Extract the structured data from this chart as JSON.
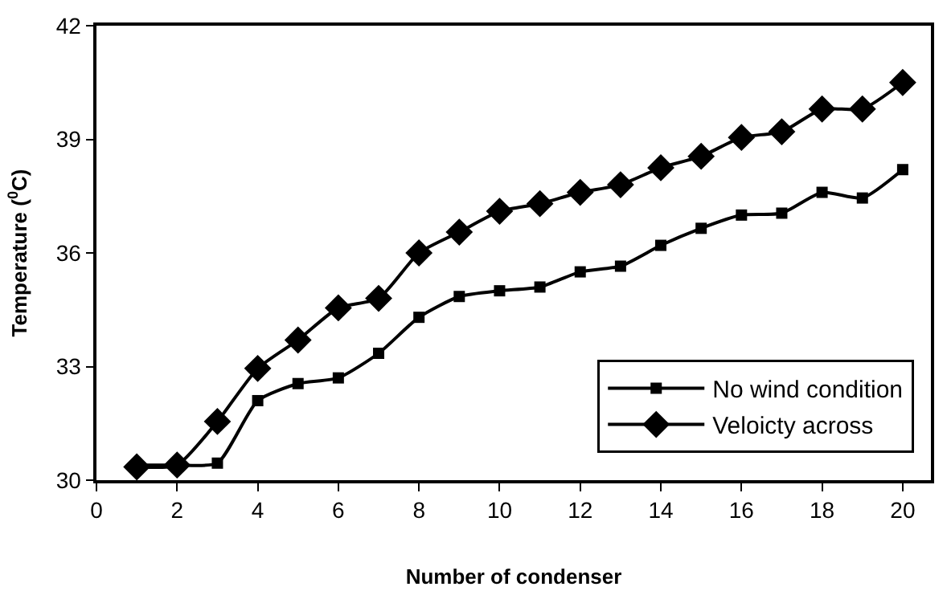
{
  "chart_data": {
    "type": "line",
    "xlabel": "Number of condenser",
    "ylabel": "Temperature ($^{0}$C)",
    "x": [
      1,
      2,
      3,
      4,
      5,
      6,
      7,
      8,
      9,
      10,
      11,
      12,
      13,
      14,
      15,
      16,
      17,
      18,
      19,
      20
    ],
    "series": [
      {
        "name": "No wind condition",
        "color": "#000000",
        "marker": "square",
        "values": [
          30.4,
          30.4,
          30.45,
          32.1,
          32.55,
          32.7,
          33.35,
          34.3,
          34.85,
          35.0,
          35.1,
          35.5,
          35.65,
          36.2,
          36.65,
          37.0,
          37.05,
          37.6,
          37.45,
          38.2
        ]
      },
      {
        "name": "Veloicty across",
        "color": "#000000",
        "marker": "diamond",
        "values": [
          30.35,
          30.4,
          31.55,
          32.95,
          33.7,
          34.55,
          34.8,
          36.0,
          36.55,
          37.1,
          37.3,
          37.6,
          37.8,
          38.25,
          38.55,
          39.05,
          39.2,
          39.8,
          39.8,
          40.5
        ]
      }
    ],
    "xlim": [
      0,
      20.7
    ],
    "xticks": [
      0,
      2,
      4,
      6,
      8,
      10,
      12,
      14,
      16,
      18,
      20
    ],
    "ylim": [
      30,
      42
    ],
    "yticks": [
      30,
      33,
      36,
      39,
      42
    ],
    "legend": "bottom right",
    "line_style": "solid"
  }
}
